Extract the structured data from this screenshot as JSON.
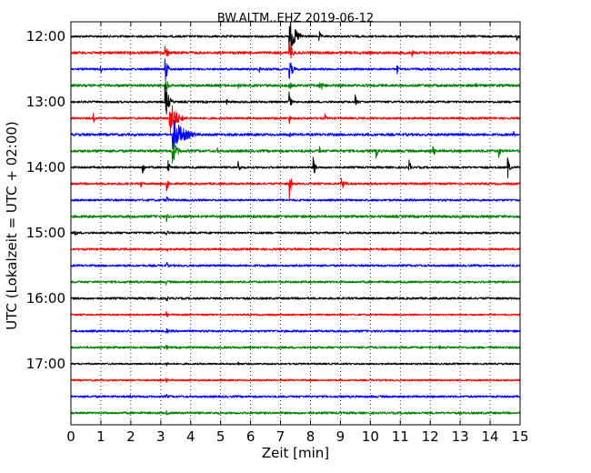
{
  "chart_data": {
    "type": "line",
    "title": "BW.ALTM..EHZ 2019-06-12",
    "xlabel": "Zeit  [min]",
    "ylabel": "UTC (Lokalzeit = UTC + 02:00)",
    "xlim": [
      0,
      15
    ],
    "x_ticks": [
      "0",
      "1",
      "2",
      "3",
      "4",
      "5",
      "6",
      "7",
      "8",
      "9",
      "10",
      "11",
      "12",
      "13",
      "14",
      "15"
    ],
    "y_ticks": [
      "12:00",
      "13:00",
      "14:00",
      "15:00",
      "16:00",
      "17:00"
    ],
    "trace_interval_min": 15,
    "grid": true,
    "colors": [
      "#000000",
      "#ff0000",
      "#0000ff",
      "#008000"
    ],
    "series": [
      {
        "start": "12:00",
        "noise": 0.1,
        "events": [
          {
            "t": 7.3,
            "amp": 1.6,
            "dur": 0.6
          },
          {
            "t": 8.3,
            "amp": 0.5,
            "dur": 0.2
          },
          {
            "t": 14.9,
            "amp": 0.7,
            "dur": 0.1
          }
        ]
      },
      {
        "start": "12:15",
        "noise": 0.12,
        "events": [
          {
            "t": 3.15,
            "amp": 1.2,
            "dur": 0.2
          },
          {
            "t": 7.3,
            "amp": 0.9,
            "dur": 0.3
          },
          {
            "t": 11.4,
            "amp": 0.4,
            "dur": 0.1
          }
        ]
      },
      {
        "start": "12:30",
        "noise": 0.1,
        "events": [
          {
            "t": 1.0,
            "amp": 0.4,
            "dur": 0.1
          },
          {
            "t": 3.15,
            "amp": 1.5,
            "dur": 0.2
          },
          {
            "t": 6.3,
            "amp": 0.4,
            "dur": 0.1
          },
          {
            "t": 7.3,
            "amp": 1.0,
            "dur": 0.3
          },
          {
            "t": 10.9,
            "amp": 0.5,
            "dur": 0.1
          }
        ]
      },
      {
        "start": "12:45",
        "noise": 0.12,
        "events": [
          {
            "t": 3.15,
            "amp": 1.2,
            "dur": 0.2
          },
          {
            "t": 5.6,
            "amp": 0.3,
            "dur": 0.1
          },
          {
            "t": 7.3,
            "amp": 0.5,
            "dur": 0.2
          },
          {
            "t": 8.3,
            "amp": 0.5,
            "dur": 0.5
          },
          {
            "t": 13.5,
            "amp": 0.5,
            "dur": 0.1
          }
        ]
      },
      {
        "start": "13:00",
        "noise": 0.1,
        "events": [
          {
            "t": 3.15,
            "amp": 1.8,
            "dur": 0.3
          },
          {
            "t": 5.2,
            "amp": 0.3,
            "dur": 0.1
          },
          {
            "t": 7.3,
            "amp": 1.2,
            "dur": 0.1
          },
          {
            "t": 9.5,
            "amp": 0.7,
            "dur": 0.1
          }
        ]
      },
      {
        "start": "13:15",
        "noise": 0.1,
        "events": [
          {
            "t": 0.75,
            "amp": 0.5,
            "dur": 0.1
          },
          {
            "t": 3.3,
            "amp": 1.8,
            "dur": 0.6
          },
          {
            "t": 7.3,
            "amp": 0.5,
            "dur": 0.1
          },
          {
            "t": 8.5,
            "amp": 0.4,
            "dur": 0.1
          }
        ]
      },
      {
        "start": "13:30",
        "noise": 0.12,
        "events": [
          {
            "t": 3.4,
            "amp": 1.6,
            "dur": 1.0
          },
          {
            "t": 7.3,
            "amp": 0.4,
            "dur": 0.1
          },
          {
            "t": 14.8,
            "amp": 0.3,
            "dur": 0.1
          }
        ]
      },
      {
        "start": "13:45",
        "noise": 0.12,
        "events": [
          {
            "t": 3.4,
            "amp": 1.2,
            "dur": 0.4
          },
          {
            "t": 4.9,
            "amp": 0.3,
            "dur": 0.1
          },
          {
            "t": 8.3,
            "amp": 0.5,
            "dur": 0.1
          },
          {
            "t": 10.2,
            "amp": 0.7,
            "dur": 0.1
          },
          {
            "t": 12.1,
            "amp": 0.7,
            "dur": 0.1
          },
          {
            "t": 14.3,
            "amp": 0.7,
            "dur": 0.1
          }
        ]
      },
      {
        "start": "14:00",
        "noise": 0.1,
        "events": [
          {
            "t": 2.4,
            "amp": 0.8,
            "dur": 0.1
          },
          {
            "t": 3.25,
            "amp": 0.7,
            "dur": 0.1
          },
          {
            "t": 5.6,
            "amp": 0.8,
            "dur": 0.1
          },
          {
            "t": 8.1,
            "amp": 1.2,
            "dur": 0.1
          },
          {
            "t": 11.3,
            "amp": 0.8,
            "dur": 0.1
          },
          {
            "t": 14.6,
            "amp": 1.0,
            "dur": 0.1
          }
        ]
      },
      {
        "start": "14:15",
        "noise": 0.1,
        "events": [
          {
            "t": 2.35,
            "amp": 0.4,
            "dur": 0.1
          },
          {
            "t": 3.2,
            "amp": 1.0,
            "dur": 0.1
          },
          {
            "t": 7.3,
            "amp": 1.6,
            "dur": 0.1
          },
          {
            "t": 9.05,
            "amp": 0.5,
            "dur": 0.4
          }
        ]
      },
      {
        "start": "14:30",
        "noise": 0.1,
        "events": [
          {
            "t": 3.2,
            "amp": 0.5,
            "dur": 0.1
          }
        ]
      },
      {
        "start": "14:45",
        "noise": 0.12,
        "events": [
          {
            "t": 3.2,
            "amp": 0.5,
            "dur": 0.1
          }
        ]
      },
      {
        "start": "15:00",
        "noise": 0.1,
        "events": [
          {
            "t": 0.15,
            "amp": 0.4,
            "dur": 0.2
          },
          {
            "t": 3.2,
            "amp": 0.4,
            "dur": 0.1
          }
        ]
      },
      {
        "start": "15:15",
        "noise": 0.1,
        "events": [
          {
            "t": 3.2,
            "amp": 0.4,
            "dur": 0.1
          },
          {
            "t": 10.4,
            "amp": 0.25,
            "dur": 0.1
          }
        ]
      },
      {
        "start": "15:30",
        "noise": 0.1,
        "events": [
          {
            "t": 3.2,
            "amp": 0.4,
            "dur": 0.1
          }
        ]
      },
      {
        "start": "15:45",
        "noise": 0.1,
        "events": [
          {
            "t": 3.2,
            "amp": 0.3,
            "dur": 0.1
          }
        ]
      },
      {
        "start": "16:00",
        "noise": 0.1,
        "events": [
          {
            "t": 3.2,
            "amp": 0.3,
            "dur": 0.1
          }
        ]
      },
      {
        "start": "16:15",
        "noise": 0.08,
        "events": [
          {
            "t": 3.2,
            "amp": 0.3,
            "dur": 0.1
          }
        ]
      },
      {
        "start": "16:30",
        "noise": 0.1,
        "events": [
          {
            "t": 3.2,
            "amp": 0.3,
            "dur": 0.1
          }
        ]
      },
      {
        "start": "16:45",
        "noise": 0.1,
        "events": [
          {
            "t": 3.2,
            "amp": 0.3,
            "dur": 0.1
          },
          {
            "t": 12.3,
            "amp": 0.25,
            "dur": 0.2
          }
        ]
      },
      {
        "start": "17:00",
        "noise": 0.08,
        "events": [
          {
            "t": 3.2,
            "amp": 0.3,
            "dur": 0.1
          },
          {
            "t": 5.6,
            "amp": 0.2,
            "dur": 0.1
          }
        ]
      },
      {
        "start": "17:15",
        "noise": 0.08,
        "events": [
          {
            "t": 3.2,
            "amp": 0.3,
            "dur": 0.1
          }
        ]
      },
      {
        "start": "17:30",
        "noise": 0.1,
        "events": [
          {
            "t": 2.0,
            "amp": 0.2,
            "dur": 0.1
          },
          {
            "t": 3.2,
            "amp": 0.3,
            "dur": 0.1
          }
        ]
      },
      {
        "start": "17:45",
        "noise": 0.1,
        "events": [
          {
            "t": 3.2,
            "amp": 0.3,
            "dur": 0.1
          }
        ]
      }
    ]
  }
}
